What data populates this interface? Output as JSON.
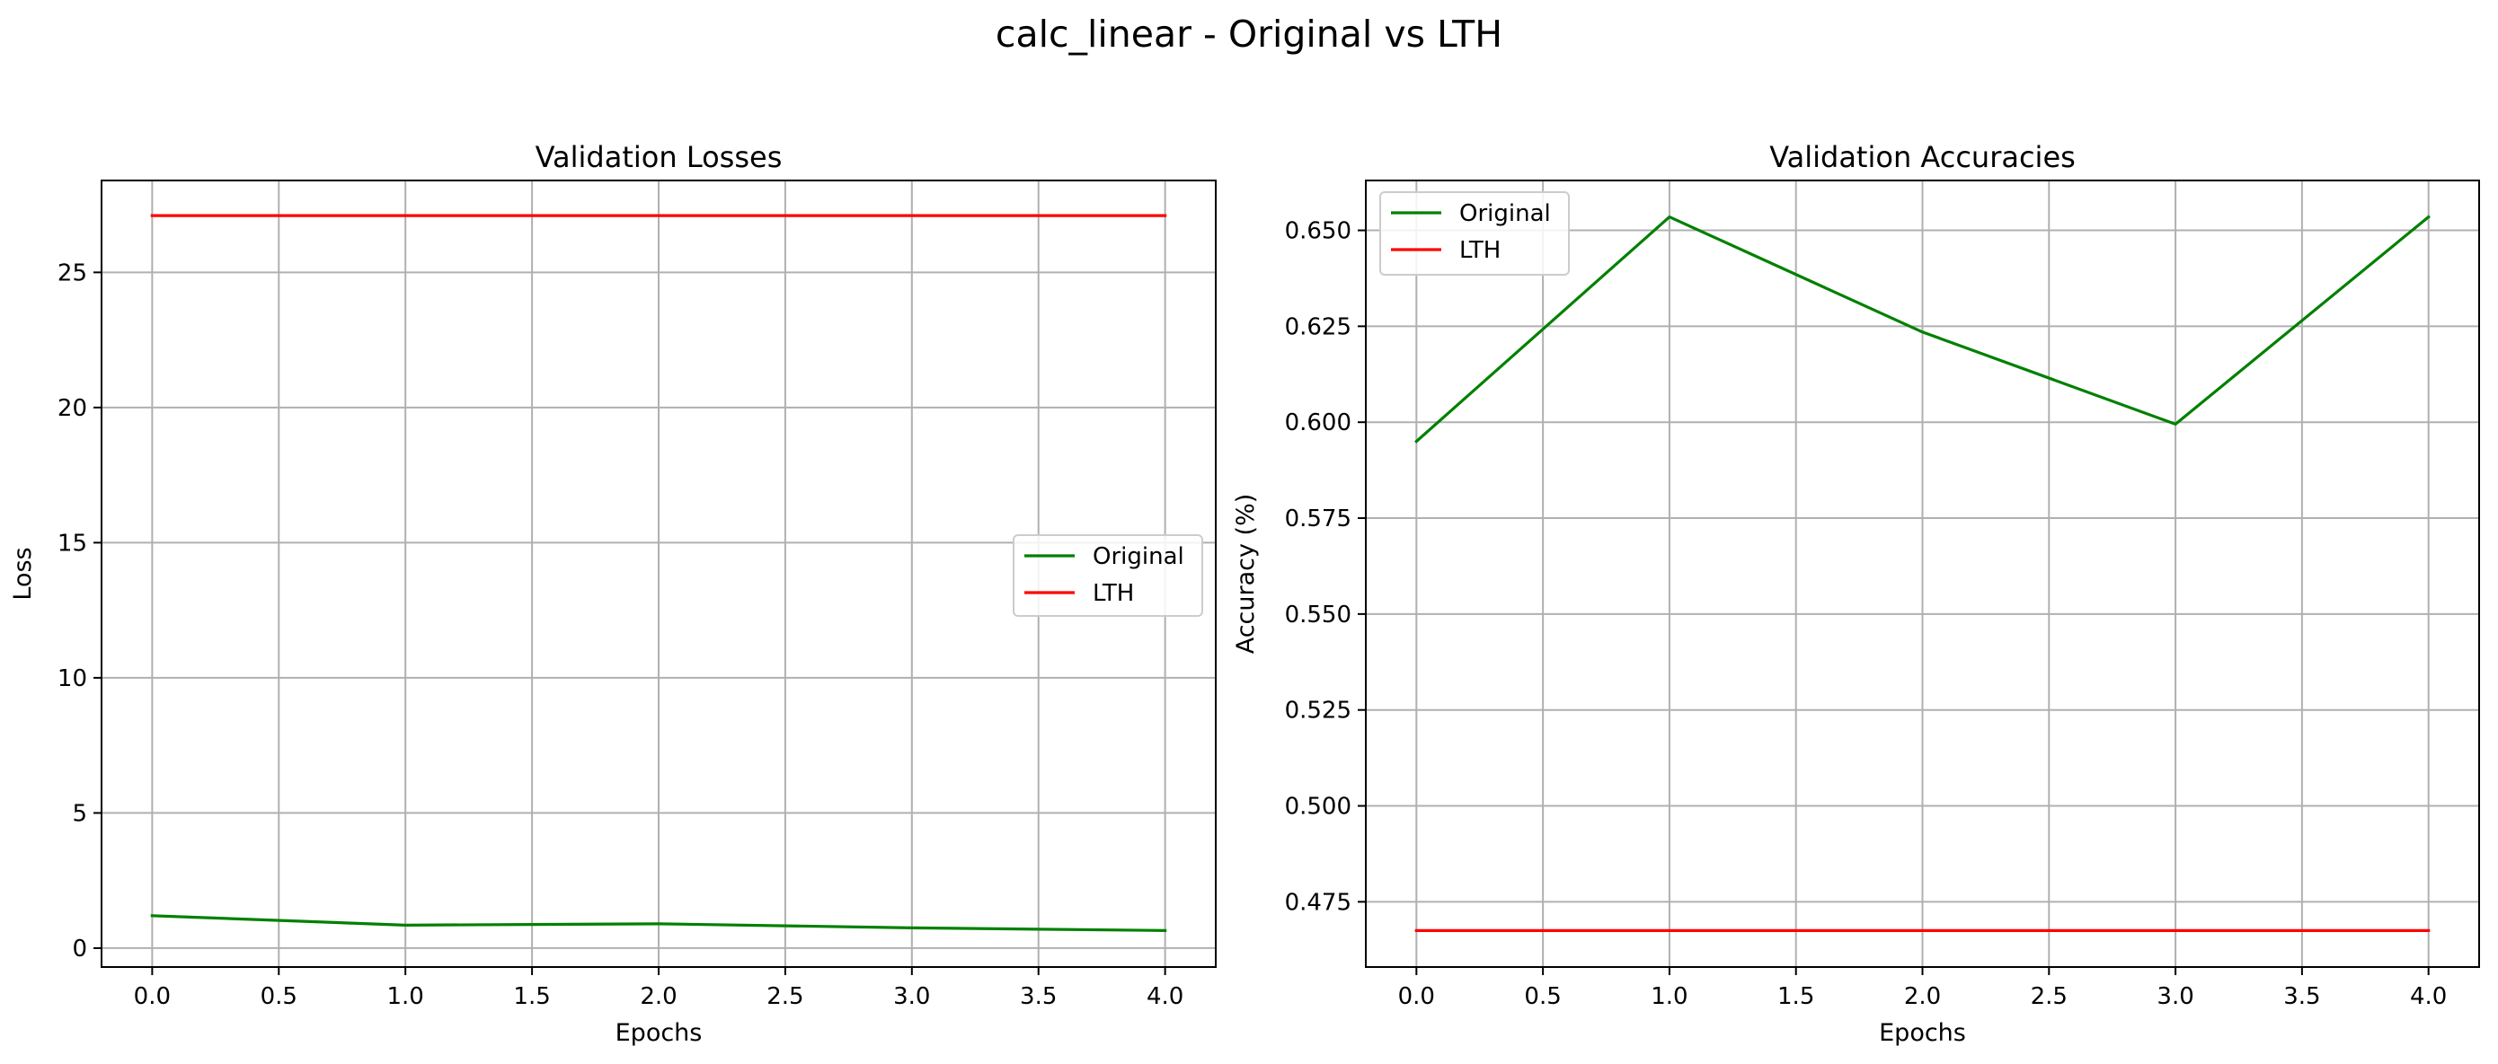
{
  "figure": {
    "suptitle": "calc_linear - Original vs LTH"
  },
  "chart_data": [
    {
      "type": "line",
      "title": "Validation Losses",
      "xlabel": "Epochs",
      "ylabel": "Loss",
      "x": [
        0,
        1,
        2,
        3,
        4
      ],
      "xlim": [
        -0.2,
        4.2
      ],
      "ylim": [
        -0.7,
        28.4
      ],
      "xticks": [
        0.0,
        0.5,
        1.0,
        1.5,
        2.0,
        2.5,
        3.0,
        3.5,
        4.0
      ],
      "xtick_labels": [
        "0.0",
        "0.5",
        "1.0",
        "1.5",
        "2.0",
        "2.5",
        "3.0",
        "3.5",
        "4.0"
      ],
      "yticks": [
        0,
        5,
        10,
        15,
        20,
        25
      ],
      "ytick_labels": [
        "0",
        "5",
        "10",
        "15",
        "20",
        "25"
      ],
      "grid": true,
      "legend_position": "center-right",
      "series": [
        {
          "name": "Original",
          "color": "#008000",
          "values": [
            1.2,
            0.85,
            0.9,
            0.75,
            0.65
          ]
        },
        {
          "name": "LTH",
          "color": "#ff0000",
          "values": [
            27.1,
            27.1,
            27.1,
            27.1,
            27.1
          ]
        }
      ]
    },
    {
      "type": "line",
      "title": "Validation Accuracies",
      "xlabel": "Epochs",
      "ylabel": "Accuracy (%)",
      "x": [
        0,
        1,
        2,
        3,
        4
      ],
      "xlim": [
        -0.2,
        4.2
      ],
      "ylim": [
        0.458,
        0.663
      ],
      "xticks": [
        0.0,
        0.5,
        1.0,
        1.5,
        2.0,
        2.5,
        3.0,
        3.5,
        4.0
      ],
      "xtick_labels": [
        "0.0",
        "0.5",
        "1.0",
        "1.5",
        "2.0",
        "2.5",
        "3.0",
        "3.5",
        "4.0"
      ],
      "yticks": [
        0.475,
        0.5,
        0.525,
        0.55,
        0.575,
        0.6,
        0.625,
        0.65
      ],
      "ytick_labels": [
        "0.475",
        "0.500",
        "0.525",
        "0.550",
        "0.575",
        "0.600",
        "0.625",
        "0.650"
      ],
      "grid": true,
      "legend_position": "top-left",
      "series": [
        {
          "name": "Original",
          "color": "#008000",
          "values": [
            0.595,
            0.6535,
            0.6235,
            0.5995,
            0.6535
          ]
        },
        {
          "name": "LTH",
          "color": "#ff0000",
          "values": [
            0.4675,
            0.4675,
            0.4675,
            0.4675,
            0.4675
          ]
        }
      ]
    }
  ]
}
